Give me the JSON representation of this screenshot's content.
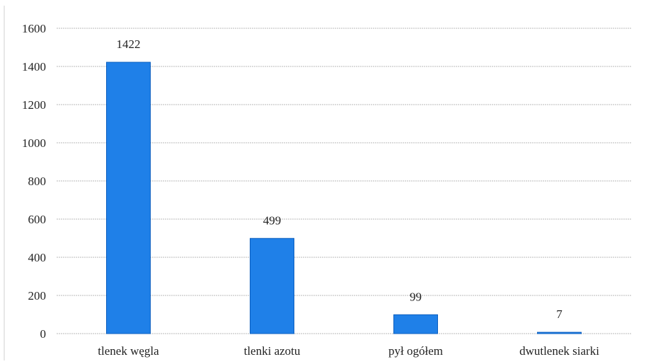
{
  "chart_data": {
    "type": "bar",
    "categories": [
      "tlenek węgla",
      "tlenki azotu",
      "pył ogółem",
      "dwutlenek siarki"
    ],
    "values": [
      1422,
      499,
      99,
      7
    ],
    "data_labels": [
      "1422",
      "499",
      "99",
      "7"
    ],
    "y_ticks": [
      0,
      200,
      400,
      600,
      800,
      1000,
      1200,
      1400,
      1600
    ],
    "ylim": [
      0,
      1600
    ],
    "grid": true,
    "legend": "none",
    "title": "",
    "xlabel": "",
    "ylabel": ""
  },
  "colors": {
    "bar_fill": "#1f80e8",
    "bar_stroke": "#0d5fbf",
    "grid": "#b9b9b9"
  }
}
